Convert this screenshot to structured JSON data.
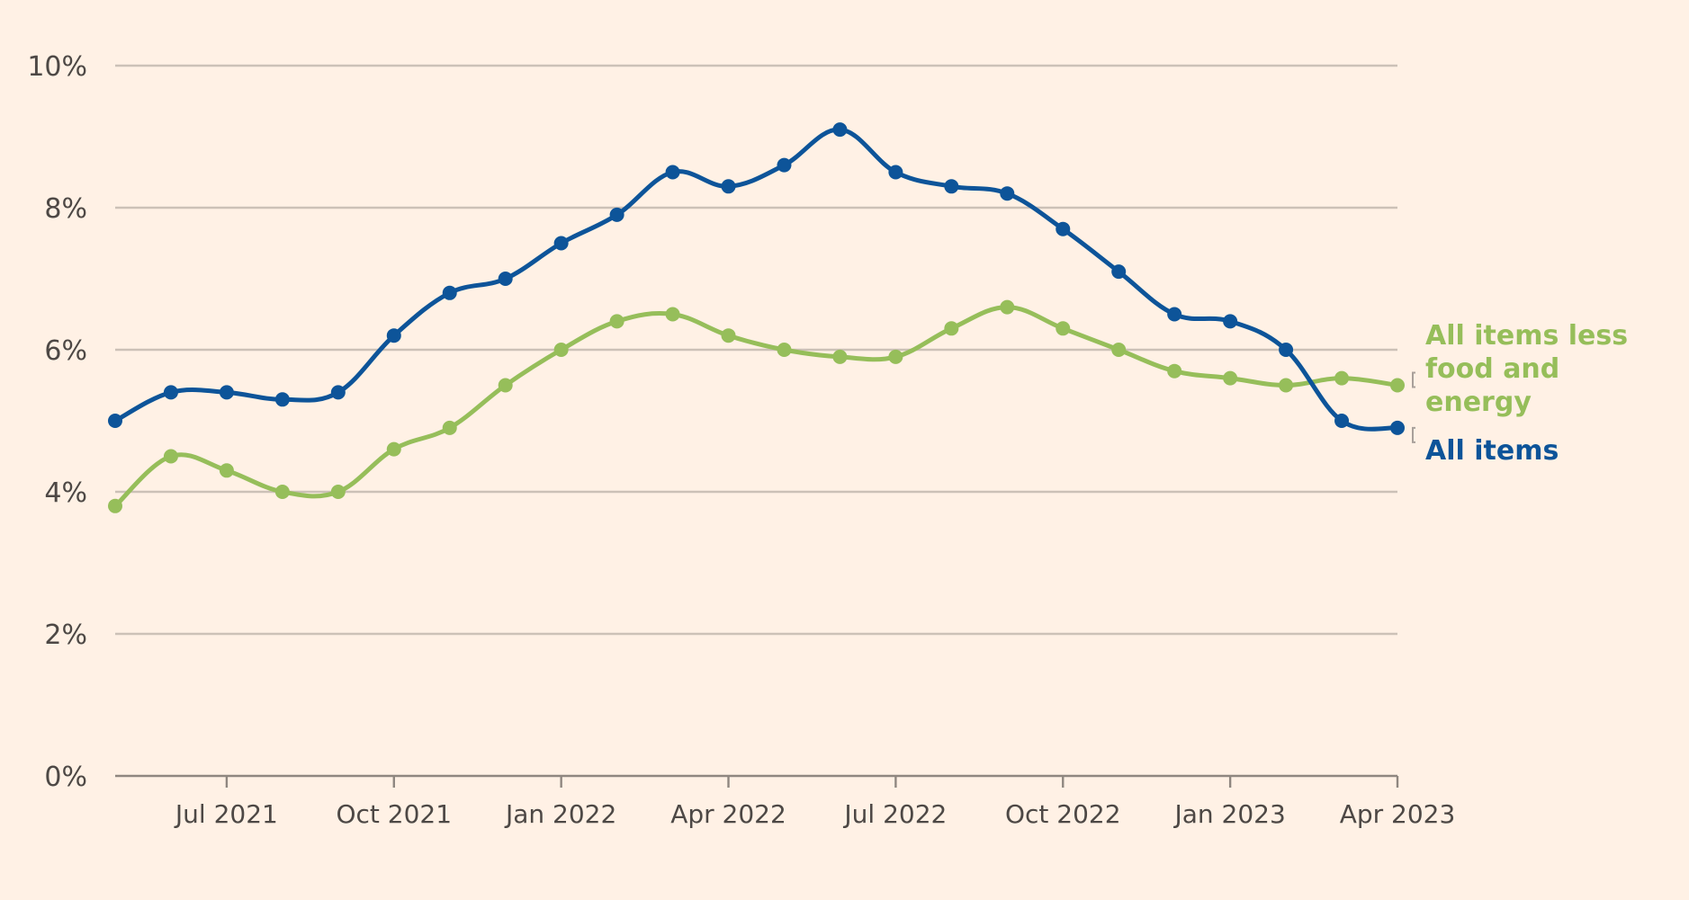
{
  "chart_data": {
    "type": "line",
    "title": "",
    "xlabel": "",
    "ylabel": "",
    "ylim": [
      0,
      10
    ],
    "yticks": [
      0,
      2,
      4,
      6,
      8,
      10
    ],
    "ytick_labels": [
      "0%",
      "2%",
      "4%",
      "6%",
      "8%",
      "10%"
    ],
    "xticks": [
      {
        "date": "2021-07",
        "label": "Jul 2021"
      },
      {
        "date": "2021-10",
        "label": "Oct 2021"
      },
      {
        "date": "2022-01",
        "label": "Jan 2022"
      },
      {
        "date": "2022-04",
        "label": "Apr 2022"
      },
      {
        "date": "2022-07",
        "label": "Jul 2022"
      },
      {
        "date": "2022-10",
        "label": "Oct 2022"
      },
      {
        "date": "2023-01",
        "label": "Jan 2023"
      },
      {
        "date": "2023-04",
        "label": "Apr 2023"
      }
    ],
    "x": [
      "2021-05",
      "2021-06",
      "2021-07",
      "2021-08",
      "2021-09",
      "2021-10",
      "2021-11",
      "2021-12",
      "2022-01",
      "2022-02",
      "2022-03",
      "2022-04",
      "2022-05",
      "2022-06",
      "2022-07",
      "2022-08",
      "2022-09",
      "2022-10",
      "2022-11",
      "2022-12",
      "2023-01",
      "2023-02",
      "2023-03",
      "2023-04"
    ],
    "grid": true,
    "series": [
      {
        "name": "All items less food and energy",
        "label_lines": [
          "All items less",
          "food and",
          "energy"
        ],
        "color": "#96BE5A",
        "values": [
          3.8,
          4.5,
          4.3,
          4.0,
          4.0,
          4.6,
          4.9,
          5.5,
          6.0,
          6.4,
          6.5,
          6.2,
          6.0,
          5.9,
          5.9,
          6.3,
          6.6,
          6.3,
          6.0,
          5.7,
          5.6,
          5.5,
          5.6,
          5.5
        ]
      },
      {
        "name": "All items",
        "label_lines": [
          "All items"
        ],
        "color": "#0D5499",
        "values": [
          5.0,
          5.4,
          5.4,
          5.3,
          5.4,
          6.2,
          6.8,
          7.0,
          7.5,
          7.9,
          8.5,
          8.3,
          8.6,
          9.1,
          8.5,
          8.3,
          8.2,
          7.7,
          7.1,
          6.5,
          6.4,
          6.0,
          5.0,
          4.9
        ]
      }
    ]
  }
}
